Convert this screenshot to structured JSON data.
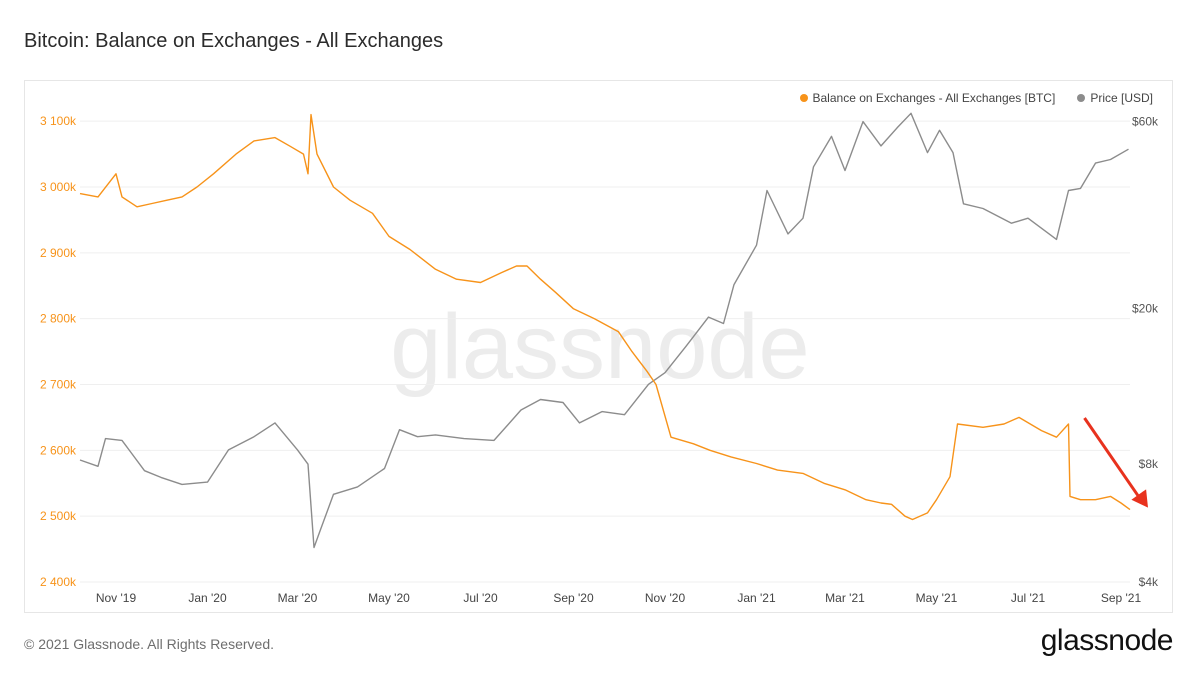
{
  "header": {
    "title": "Bitcoin: Balance on Exchanges - All Exchanges"
  },
  "watermark": "glassnode",
  "footer": {
    "copyright": "© 2021 Glassnode. All Rights Reserved.",
    "brand": "glassnode"
  },
  "colors": {
    "balance": "#F7931A",
    "price": "#8c8c8c",
    "arrow": "#e8321e",
    "grid": "#efefef"
  },
  "chart_data": {
    "type": "line",
    "title": "Bitcoin: Balance on Exchanges - All Exchanges",
    "legend_position": "top-right",
    "grid": true,
    "x_ticks": [
      "Nov '19",
      "Jan '20",
      "Mar '20",
      "May '20",
      "Jul '20",
      "Sep '20",
      "Nov '20",
      "Jan '21",
      "Mar '21",
      "May '21",
      "Jul '21",
      "Sep '21"
    ],
    "x_range": [
      "2019-10-08",
      "2021-09-07"
    ],
    "y_left": {
      "ticks": [
        "2 400k",
        "2 500k",
        "2 600k",
        "2 700k",
        "2 800k",
        "2 900k",
        "3 000k",
        "3 100k"
      ],
      "range": [
        2400000,
        3120000
      ]
    },
    "y_right": {
      "scale": "log",
      "ticks": [
        "$4k",
        "$8k",
        "$20k",
        "$60k"
      ],
      "tick_values": [
        4000,
        8000,
        20000,
        60000
      ],
      "range": [
        4000,
        65000
      ]
    },
    "series": [
      {
        "name": "Balance on Exchanges - All Exchanges [BTC]",
        "axis": "left",
        "x": [
          "2019-10-08",
          "2019-10-20",
          "2019-11-01",
          "2019-11-05",
          "2019-11-15",
          "2019-11-25",
          "2019-12-05",
          "2019-12-15",
          "2019-12-25",
          "2020-01-05",
          "2020-01-20",
          "2020-02-01",
          "2020-02-15",
          "2020-02-25",
          "2020-03-05",
          "2020-03-08",
          "2020-03-10",
          "2020-03-14",
          "2020-03-25",
          "2020-04-05",
          "2020-04-20",
          "2020-05-01",
          "2020-05-15",
          "2020-06-01",
          "2020-06-15",
          "2020-07-01",
          "2020-07-15",
          "2020-07-25",
          "2020-08-01",
          "2020-08-10",
          "2020-08-20",
          "2020-09-01",
          "2020-09-15",
          "2020-10-01",
          "2020-10-10",
          "2020-10-20",
          "2020-10-26",
          "2020-11-05",
          "2020-11-20",
          "2020-12-01",
          "2020-12-15",
          "2021-01-01",
          "2021-01-15",
          "2021-02-01",
          "2021-02-15",
          "2021-03-01",
          "2021-03-15",
          "2021-03-25",
          "2021-04-01",
          "2021-04-10",
          "2021-04-15",
          "2021-04-25",
          "2021-05-01",
          "2021-05-10",
          "2021-05-15",
          "2021-06-01",
          "2021-06-15",
          "2021-06-25",
          "2021-07-10",
          "2021-07-20",
          "2021-07-28",
          "2021-07-29",
          "2021-08-05",
          "2021-08-15",
          "2021-08-25",
          "2021-09-01",
          "2021-09-07"
        ],
        "values": [
          2990000,
          2985000,
          3020000,
          2985000,
          2970000,
          2975000,
          2980000,
          2985000,
          3000000,
          3020000,
          3050000,
          3070000,
          3075000,
          3062000,
          3050000,
          3020000,
          3110000,
          3050000,
          3000000,
          2980000,
          2960000,
          2925000,
          2905000,
          2875000,
          2860000,
          2855000,
          2870000,
          2880000,
          2880000,
          2860000,
          2840000,
          2815000,
          2800000,
          2780000,
          2750000,
          2720000,
          2700000,
          2620000,
          2610000,
          2600000,
          2590000,
          2580000,
          2570000,
          2565000,
          2550000,
          2540000,
          2525000,
          2520000,
          2518000,
          2500000,
          2495000,
          2505000,
          2525000,
          2560000,
          2640000,
          2635000,
          2640000,
          2650000,
          2630000,
          2620000,
          2640000,
          2530000,
          2525000,
          2525000,
          2530000,
          2520000,
          2510000
        ]
      },
      {
        "name": "Price [USD]",
        "axis": "right",
        "x": [
          "2019-10-08",
          "2019-10-20",
          "2019-10-25",
          "2019-11-05",
          "2019-11-20",
          "2019-12-01",
          "2019-12-15",
          "2020-01-01",
          "2020-01-15",
          "2020-02-01",
          "2020-02-15",
          "2020-03-01",
          "2020-03-08",
          "2020-03-12",
          "2020-03-16",
          "2020-03-25",
          "2020-04-10",
          "2020-04-28",
          "2020-05-08",
          "2020-05-20",
          "2020-06-01",
          "2020-06-20",
          "2020-07-10",
          "2020-07-28",
          "2020-08-10",
          "2020-08-25",
          "2020-09-05",
          "2020-09-20",
          "2020-10-05",
          "2020-10-21",
          "2020-11-01",
          "2020-11-15",
          "2020-11-30",
          "2020-12-10",
          "2020-12-17",
          "2021-01-01",
          "2021-01-08",
          "2021-01-22",
          "2021-02-01",
          "2021-02-08",
          "2021-02-20",
          "2021-03-01",
          "2021-03-13",
          "2021-03-25",
          "2021-04-05",
          "2021-04-14",
          "2021-04-25",
          "2021-05-03",
          "2021-05-12",
          "2021-05-19",
          "2021-06-01",
          "2021-06-20",
          "2021-07-01",
          "2021-07-20",
          "2021-07-28",
          "2021-08-05",
          "2021-08-15",
          "2021-08-25",
          "2021-09-06"
        ],
        "values": [
          8200,
          7900,
          9300,
          9200,
          7700,
          7400,
          7100,
          7200,
          8700,
          9400,
          10200,
          8700,
          8000,
          4900,
          5400,
          6700,
          7000,
          7800,
          9800,
          9400,
          9500,
          9300,
          9200,
          11000,
          11700,
          11500,
          10200,
          10900,
          10700,
          12800,
          13700,
          16000,
          19000,
          18300,
          23000,
          29000,
          40000,
          31000,
          34000,
          46000,
          55000,
          45000,
          60000,
          52000,
          58000,
          63000,
          50000,
          57000,
          50000,
          37000,
          36000,
          33000,
          34000,
          30000,
          40000,
          40500,
          47000,
          48000,
          51000
        ]
      }
    ],
    "annotation": {
      "type": "arrow",
      "direction": "down",
      "from": {
        "x": "2021-07-28",
        "value": 2640000
      },
      "to": {
        "x": "2021-09-07",
        "value": 2510000
      }
    }
  }
}
